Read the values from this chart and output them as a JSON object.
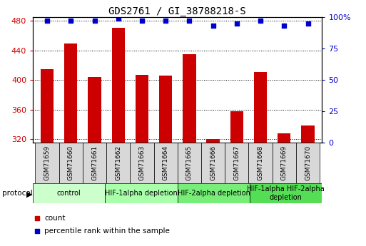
{
  "title": "GDS2761 / GI_38788218-S",
  "samples": [
    "GSM71659",
    "GSM71660",
    "GSM71661",
    "GSM71662",
    "GSM71663",
    "GSM71664",
    "GSM71665",
    "GSM71666",
    "GSM71667",
    "GSM71668",
    "GSM71669",
    "GSM71670"
  ],
  "counts": [
    415,
    449,
    404,
    471,
    407,
    406,
    435,
    320,
    358,
    411,
    328,
    338
  ],
  "percentile_ranks": [
    97,
    97,
    97,
    99,
    97,
    97,
    97,
    93,
    95,
    97,
    93,
    95
  ],
  "bar_color": "#cc0000",
  "dot_color": "#0000cc",
  "ylim_left": [
    315,
    485
  ],
  "ylim_right": [
    0,
    100
  ],
  "yticks_left": [
    320,
    360,
    400,
    440,
    480
  ],
  "yticks_right": [
    0,
    25,
    50,
    75,
    100
  ],
  "protocol_groups": [
    {
      "label": "control",
      "start": 0,
      "end": 3,
      "color": "#ccffcc"
    },
    {
      "label": "HIF-1alpha depletion",
      "start": 3,
      "end": 6,
      "color": "#aaffaa"
    },
    {
      "label": "HIF-2alpha depletion",
      "start": 6,
      "end": 9,
      "color": "#77ee77"
    },
    {
      "label": "HIF-1alpha HIF-2alpha\ndepletion",
      "start": 9,
      "end": 12,
      "color": "#55dd55"
    }
  ],
  "bar_width": 0.55,
  "baseline": 315,
  "plot_bg": "#ffffff",
  "fig_bg": "#ffffff"
}
